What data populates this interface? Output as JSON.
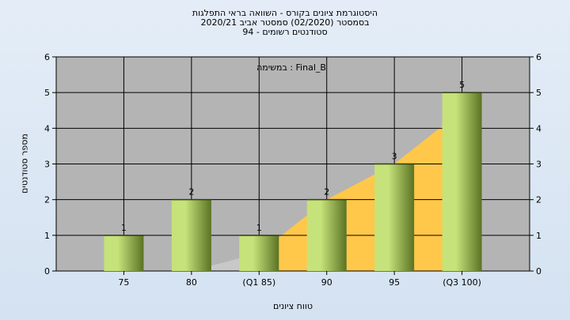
{
  "chart_data": {
    "type": "bar",
    "title": "היסטוגרמת ציונים בקורס - השוואה בראי התפלגות",
    "subtitle_lines": [
      "בסמסטר  (02/2020)  סמסטר אביב 2020/21",
      "סטודנטים רשומים - 94"
    ],
    "xlabel": "טווח ציונים",
    "ylabel": "מספר סטודנטים",
    "annotation": "במשימה : Final_B",
    "categories": [
      "75",
      "80",
      "(Q1 85)",
      "90",
      "95",
      "(Q3 100)"
    ],
    "values": [
      1,
      2,
      1,
      2,
      3,
      5
    ],
    "data_labels": [
      "1",
      "2",
      "1",
      "2",
      "3",
      "5"
    ],
    "area_series": {
      "x_index": [
        0,
        1,
        2,
        3,
        4,
        5
      ],
      "values": [
        0,
        0,
        0.5,
        2,
        3,
        4.5
      ]
    },
    "ylim": [
      0,
      6
    ],
    "yticks": [
      "0",
      "1",
      "2",
      "3",
      "4",
      "5",
      "6"
    ],
    "y_axis_both_sides": true,
    "grid": true,
    "colors": {
      "plot_bg": "#b4b4b4",
      "area_fill": "#ffc84a",
      "area_low_fill": "#c8c8c8",
      "bar_light": "#c6e27a",
      "bar_dark": "#5a7324"
    }
  }
}
